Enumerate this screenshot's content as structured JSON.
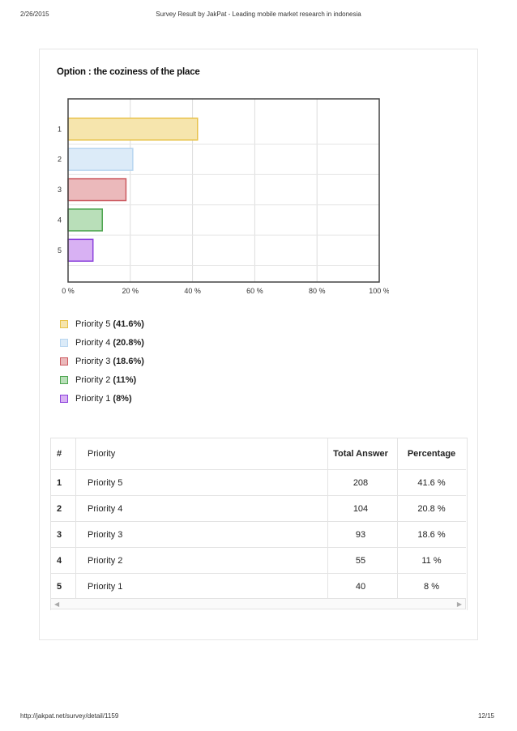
{
  "header": {
    "date": "2/26/2015",
    "title": "Survey Result by JakPat - Leading mobile market research in indonesia"
  },
  "footer": {
    "url": "http://jakpat.net/survey/detail/1159",
    "page": "12/15"
  },
  "chart_title": "Option : the coziness of the place",
  "chart_data": {
    "type": "bar",
    "orientation": "horizontal",
    "categories": [
      "1",
      "2",
      "3",
      "4",
      "5"
    ],
    "values": [
      41.6,
      20.8,
      18.6,
      11,
      8
    ],
    "xlim": [
      0,
      100
    ],
    "xticks": [
      "0 %",
      "20 %",
      "40 %",
      "60 %",
      "80 %",
      "100 %"
    ],
    "grid": true,
    "colors": {
      "fill": [
        "#f6e5ad",
        "#dcebf8",
        "#ebb9bb",
        "#b9dfb9",
        "#d8b1f3"
      ],
      "stroke": [
        "#e8c24a",
        "#b8d6f0",
        "#cc5a60",
        "#4fa651",
        "#8c42dc"
      ]
    }
  },
  "legend": [
    {
      "label": "Priority 5",
      "pct": "(41.6%)"
    },
    {
      "label": "Priority 4",
      "pct": "(20.8%)"
    },
    {
      "label": "Priority 3",
      "pct": "(18.6%)"
    },
    {
      "label": "Priority 2",
      "pct": "(11%)"
    },
    {
      "label": "Priority 1",
      "pct": "(8%)"
    }
  ],
  "table": {
    "headers": [
      "#",
      "Priority",
      "Total Answer",
      "Percentage"
    ],
    "rows": [
      [
        "1",
        "Priority 5",
        "208",
        "41.6 %"
      ],
      [
        "2",
        "Priority 4",
        "104",
        "20.8 %"
      ],
      [
        "3",
        "Priority 3",
        "93",
        "18.6 %"
      ],
      [
        "4",
        "Priority 2",
        "55",
        "11 %"
      ],
      [
        "5",
        "Priority 1",
        "40",
        "8 %"
      ]
    ]
  }
}
